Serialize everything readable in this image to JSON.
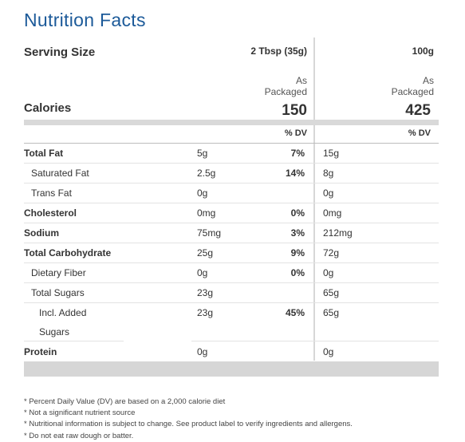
{
  "title": "Nutrition Facts",
  "serving": {
    "label": "Serving Size",
    "col1": "2 Tbsp (35g)",
    "col2": "100g"
  },
  "columns": {
    "col1_line1": "As",
    "col1_line2": "Packaged",
    "col2_line1": "As",
    "col2_line2": "Packaged"
  },
  "calories": {
    "label": "Calories",
    "col1": "150",
    "col2": "425"
  },
  "dv_header": {
    "col1": "% DV",
    "col2": "% DV"
  },
  "nutrients": [
    {
      "name": "Total Fat",
      "amount1": "5g",
      "dv1": "7%",
      "amount2": "15g"
    },
    {
      "name": "Saturated Fat",
      "amount1": "2.5g",
      "dv1": "14%",
      "amount2": "8g"
    },
    {
      "name": "Trans Fat",
      "amount1": "0g",
      "dv1": "",
      "amount2": "0g"
    },
    {
      "name": "Cholesterol",
      "amount1": "0mg",
      "dv1": "0%",
      "amount2": "0mg"
    },
    {
      "name": "Sodium",
      "amount1": "75mg",
      "dv1": "3%",
      "amount2": "212mg"
    },
    {
      "name": "Total Carbohydrate",
      "amount1": "25g",
      "dv1": "9%",
      "amount2": "72g"
    },
    {
      "name": "Dietary Fiber",
      "amount1": "0g",
      "dv1": "0%",
      "amount2": "0g"
    },
    {
      "name": "Total Sugars",
      "amount1": "23g",
      "dv1": "",
      "amount2": "65g"
    },
    {
      "name_line1": "Incl. Added",
      "name_line2": "Sugars",
      "amount1": "23g",
      "dv1": "45%",
      "amount2": "65g"
    },
    {
      "name": "Protein",
      "amount1": "0g",
      "dv1": "",
      "amount2": "0g"
    }
  ],
  "footnotes": [
    "* Percent Daily Value (DV) are based on a 2,000 calorie diet",
    "* Not a significant nutrient source",
    "* Nutritional information is subject to change. See product label to verify ingredients and allergens.",
    "* Do not eat raw dough or batter."
  ],
  "colors": {
    "title": "#1c5a99",
    "bar": "#d9d9d9",
    "text": "#333333"
  }
}
